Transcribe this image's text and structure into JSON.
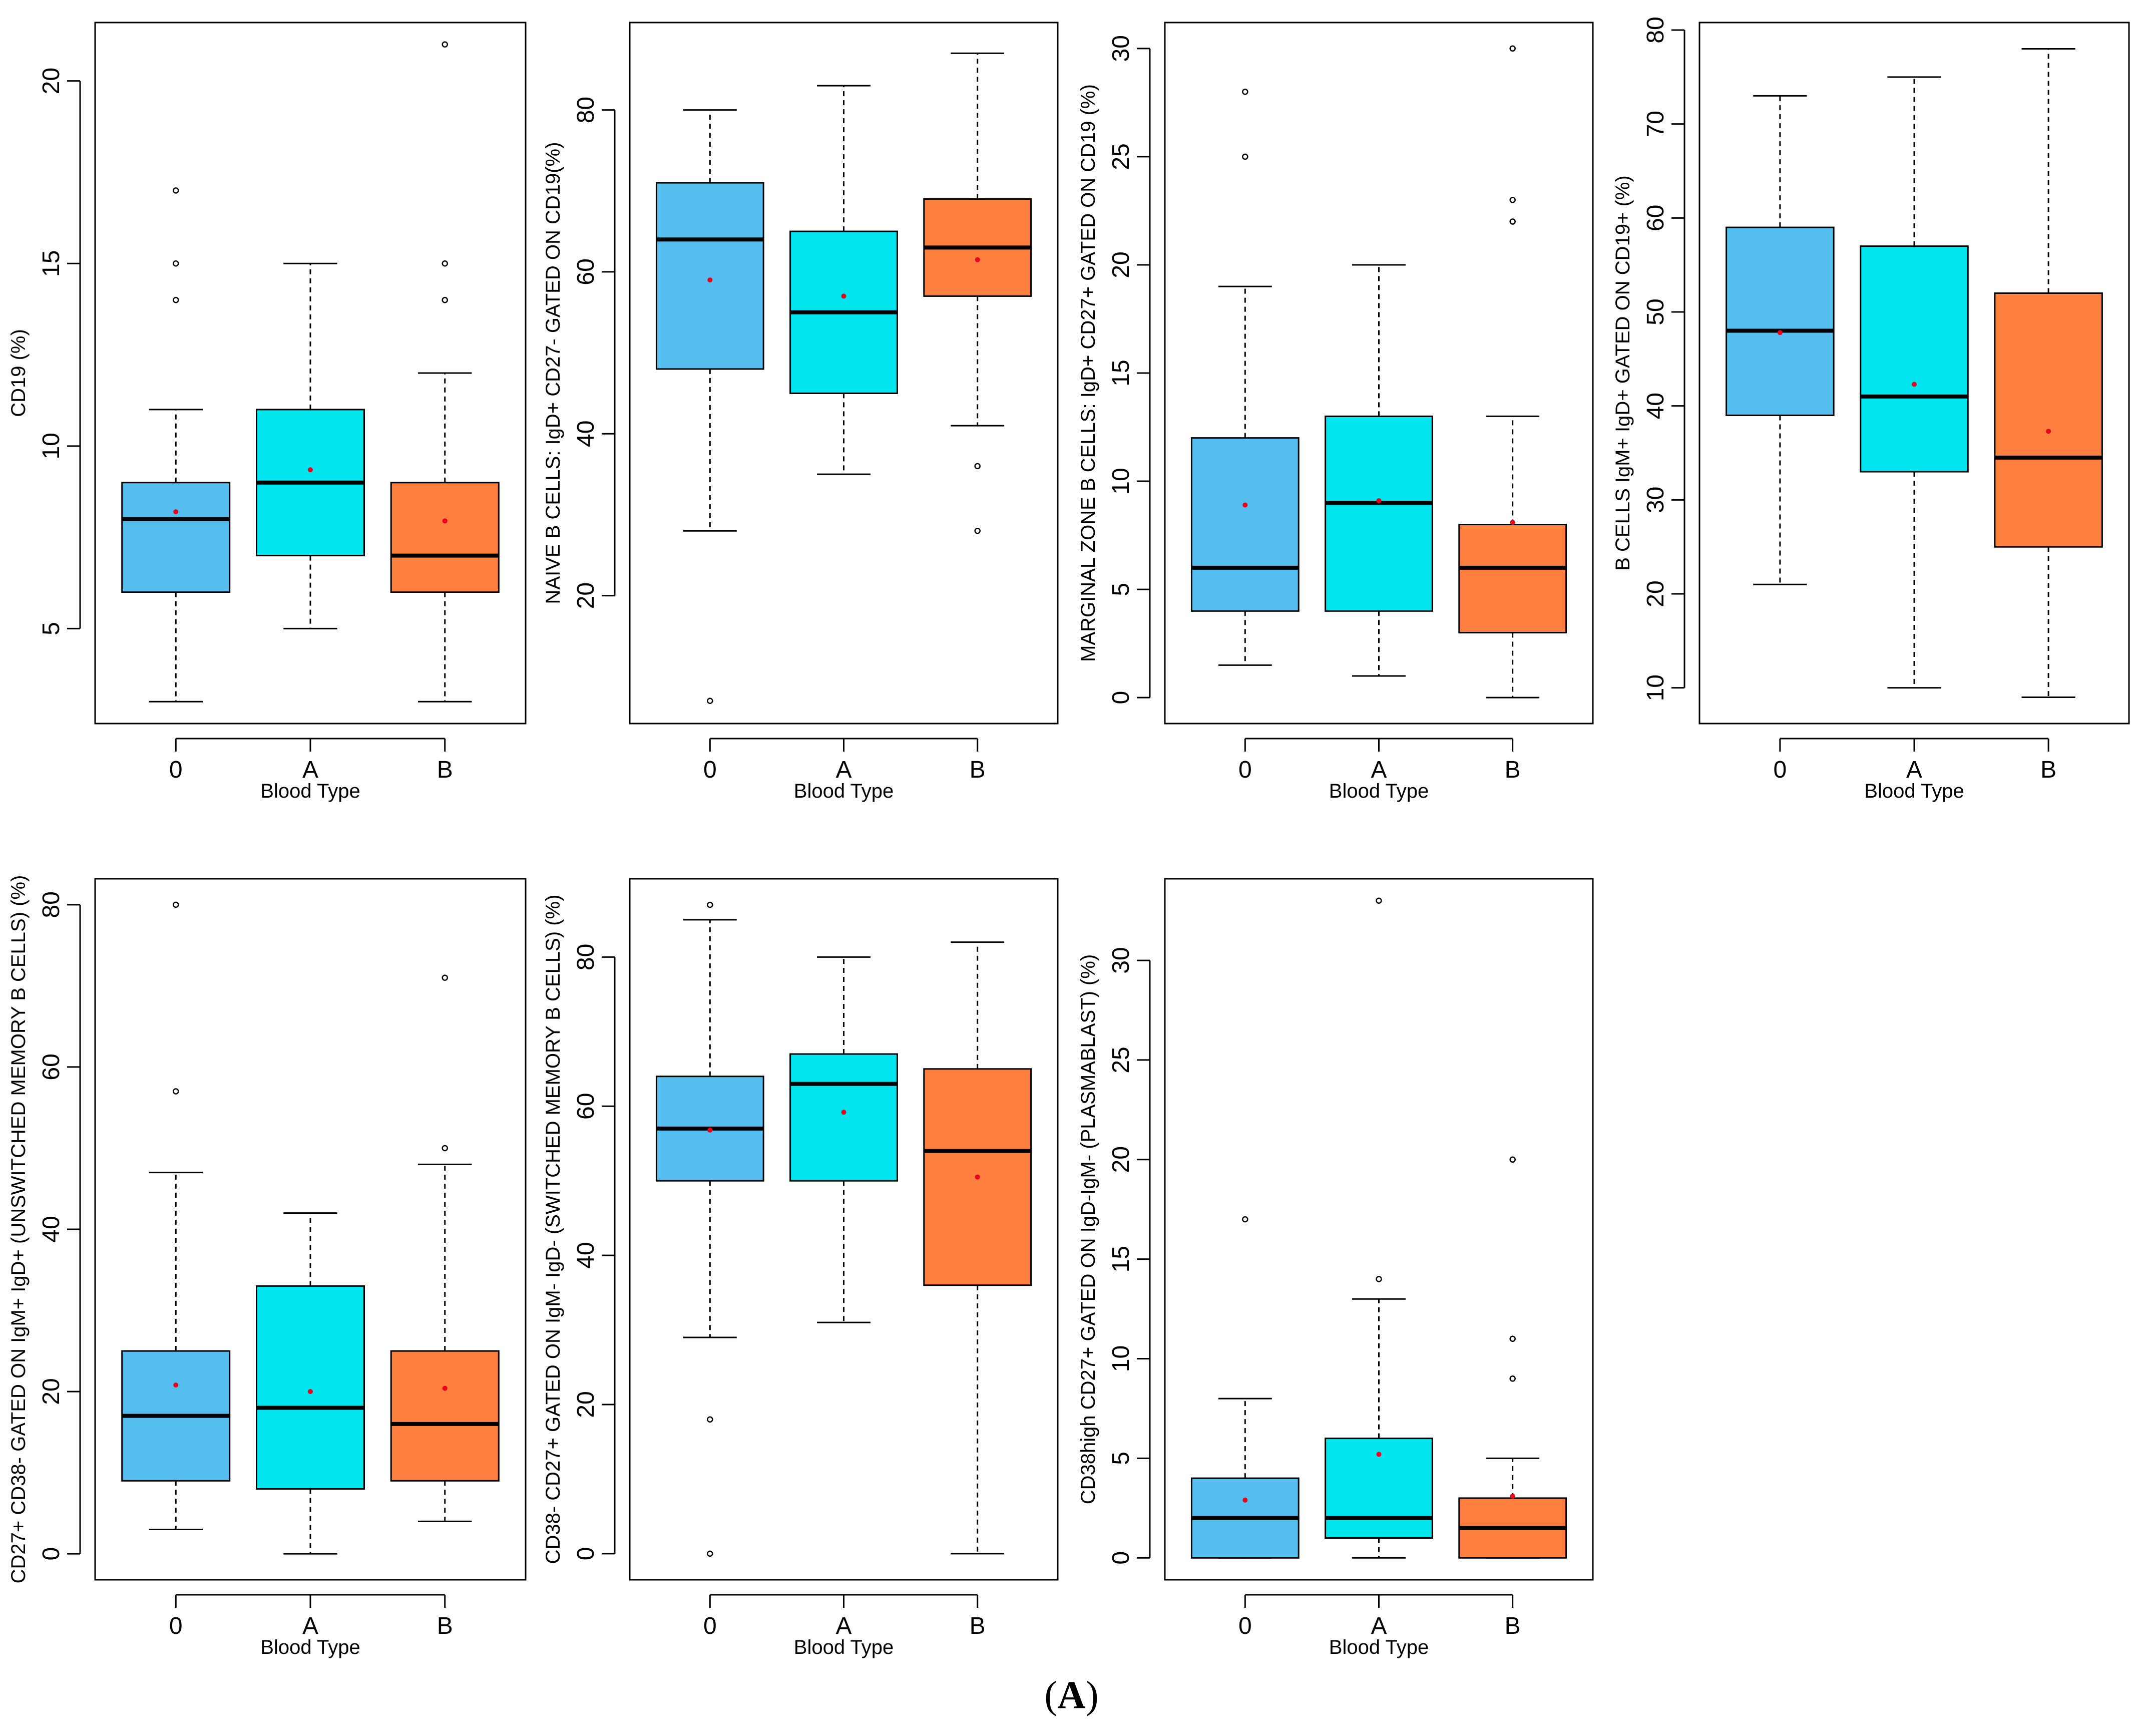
{
  "figure_label_open": "(",
  "figure_label": "A",
  "figure_label_close": ")",
  "colors": {
    "0": "#56BEEF",
    "A": "#00E5EE",
    "B": "#FF7F3F",
    "mean_marker": "#E8001C",
    "median": "#000000"
  },
  "chart_data": [
    {
      "type": "boxplot",
      "xlabel": "Blood Type",
      "ylabel": "CD19 (%)",
      "categories": [
        "0",
        "A",
        "B"
      ],
      "yticks": [
        5,
        10,
        15,
        20
      ],
      "ylim": [
        2.4,
        21.6
      ],
      "boxes": [
        {
          "group": "0",
          "whisker_low": 3,
          "q1": 6,
          "median": 8,
          "q3": 9,
          "whisker_high": 11,
          "mean": 8.2,
          "outliers": [
            14,
            15,
            17
          ]
        },
        {
          "group": "A",
          "whisker_low": 5,
          "q1": 7,
          "median": 9,
          "q3": 11,
          "whisker_high": 15,
          "mean": 9.35,
          "outliers": []
        },
        {
          "group": "B",
          "whisker_low": 3,
          "q1": 6,
          "median": 7,
          "q3": 9,
          "whisker_high": 12,
          "mean": 7.95,
          "outliers": [
            14,
            15,
            21
          ]
        }
      ]
    },
    {
      "type": "boxplot",
      "xlabel": "Blood Type",
      "ylabel": "NAIVE B CELLS: IgD+ CD27- GATED ON CD19(%)",
      "categories": [
        "0",
        "A",
        "B"
      ],
      "yticks": [
        20,
        40,
        60,
        80
      ],
      "ylim": [
        4.2,
        90.8
      ],
      "boxes": [
        {
          "group": "0",
          "whisker_low": 28,
          "q1": 48,
          "median": 64,
          "q3": 71,
          "whisker_high": 80,
          "mean": 59,
          "outliers": [
            7
          ]
        },
        {
          "group": "A",
          "whisker_low": 35,
          "q1": 45,
          "median": 55,
          "q3": 65,
          "whisker_high": 83,
          "mean": 57,
          "outliers": []
        },
        {
          "group": "B",
          "whisker_low": 41,
          "q1": 57,
          "median": 63,
          "q3": 69,
          "whisker_high": 87,
          "mean": 61.5,
          "outliers": [
            28,
            36
          ]
        }
      ]
    },
    {
      "type": "boxplot",
      "xlabel": "Blood Type",
      "ylabel": "MARGINAL ZONE B CELLS: IgD+ CD27+ GATED ON CD19 (%)",
      "categories": [
        "0",
        "A",
        "B"
      ],
      "yticks": [
        0,
        5,
        10,
        15,
        20,
        25,
        30
      ],
      "ylim": [
        -1.2,
        31.2
      ],
      "boxes": [
        {
          "group": "0",
          "whisker_low": 1.5,
          "q1": 4,
          "median": 6,
          "q3": 12,
          "whisker_high": 19,
          "mean": 8.9,
          "outliers": [
            25,
            28
          ]
        },
        {
          "group": "A",
          "whisker_low": 1,
          "q1": 4,
          "median": 9,
          "q3": 13,
          "whisker_high": 20,
          "mean": 9.1,
          "outliers": []
        },
        {
          "group": "B",
          "whisker_low": 0,
          "q1": 3,
          "median": 6,
          "q3": 8,
          "whisker_high": 13,
          "mean": 8.1,
          "outliers": [
            22,
            23,
            30
          ]
        }
      ]
    },
    {
      "type": "boxplot",
      "xlabel": "Blood Type",
      "ylabel": "B CELLS IgM+ IgD+ GATED ON CD19+ (%)",
      "categories": [
        "0",
        "A",
        "B"
      ],
      "yticks": [
        10,
        20,
        30,
        40,
        50,
        60,
        70,
        80
      ],
      "ylim": [
        6.2,
        80.8
      ],
      "boxes": [
        {
          "group": "0",
          "whisker_low": 21,
          "q1": 39,
          "median": 48,
          "q3": 59,
          "whisker_high": 73,
          "mean": 47.8,
          "outliers": []
        },
        {
          "group": "A",
          "whisker_low": 10,
          "q1": 33,
          "median": 41,
          "q3": 57,
          "whisker_high": 75,
          "mean": 42.3,
          "outliers": []
        },
        {
          "group": "B",
          "whisker_low": 9,
          "q1": 25,
          "median": 34.5,
          "q3": 52,
          "whisker_high": 78,
          "mean": 37.3,
          "outliers": []
        }
      ]
    },
    {
      "type": "boxplot",
      "xlabel": "Blood Type",
      "ylabel": "CD27+ CD38- GATED ON IgM+ IgD+ (UNSWITCHED MEMORY B CELLS) (%)",
      "categories": [
        "0",
        "A",
        "B"
      ],
      "yticks": [
        0,
        20,
        40,
        60,
        80
      ],
      "ylim": [
        -3.2,
        83.2
      ],
      "boxes": [
        {
          "group": "0",
          "whisker_low": 3,
          "q1": 9,
          "median": 17,
          "q3": 25,
          "whisker_high": 47,
          "mean": 20.8,
          "outliers": [
            57,
            80
          ]
        },
        {
          "group": "A",
          "whisker_low": 0,
          "q1": 8,
          "median": 18,
          "q3": 33,
          "whisker_high": 42,
          "mean": 20,
          "outliers": []
        },
        {
          "group": "B",
          "whisker_low": 4,
          "q1": 9,
          "median": 16,
          "q3": 25,
          "whisker_high": 48,
          "mean": 20.4,
          "outliers": [
            50,
            71
          ]
        }
      ]
    },
    {
      "type": "boxplot",
      "xlabel": "Blood Type",
      "ylabel": "CD38- CD27+ GATED ON IgM- IgD- (SWITCHED MEMORY B CELLS) (%)",
      "categories": [
        "0",
        "A",
        "B"
      ],
      "yticks": [
        0,
        20,
        40,
        60,
        80
      ],
      "ylim": [
        -3.5,
        90.5
      ],
      "boxes": [
        {
          "group": "0",
          "whisker_low": 29,
          "q1": 50,
          "median": 57,
          "q3": 64,
          "whisker_high": 85,
          "mean": 56.8,
          "outliers": [
            0,
            18,
            87
          ]
        },
        {
          "group": "A",
          "whisker_low": 31,
          "q1": 50,
          "median": 63,
          "q3": 67,
          "whisker_high": 80,
          "mean": 59.2,
          "outliers": []
        },
        {
          "group": "B",
          "whisker_low": 0,
          "q1": 36,
          "median": 54,
          "q3": 65,
          "whisker_high": 82,
          "mean": 50.5,
          "outliers": []
        }
      ]
    },
    {
      "type": "boxplot",
      "xlabel": "Blood Type",
      "ylabel": "CD38high CD27+ GATED ON IgD-IgM- (PLASMABLAST) (%)",
      "categories": [
        "0",
        "A",
        "B"
      ],
      "yticks": [
        0,
        5,
        10,
        15,
        20,
        25,
        30
      ],
      "ylim": [
        -1.1,
        34.1
      ],
      "boxes": [
        {
          "group": "0",
          "whisker_low": 0,
          "q1": 0,
          "median": 2,
          "q3": 4,
          "whisker_high": 8,
          "mean": 2.9,
          "outliers": [
            17
          ]
        },
        {
          "group": "A",
          "whisker_low": 0,
          "q1": 1,
          "median": 2,
          "q3": 6,
          "whisker_high": 13,
          "mean": 5.2,
          "outliers": [
            14,
            33
          ]
        },
        {
          "group": "B",
          "whisker_low": 0,
          "q1": 0,
          "median": 1.5,
          "q3": 3,
          "whisker_high": 5,
          "mean": 3.1,
          "outliers": [
            9,
            11,
            20
          ]
        }
      ]
    }
  ]
}
